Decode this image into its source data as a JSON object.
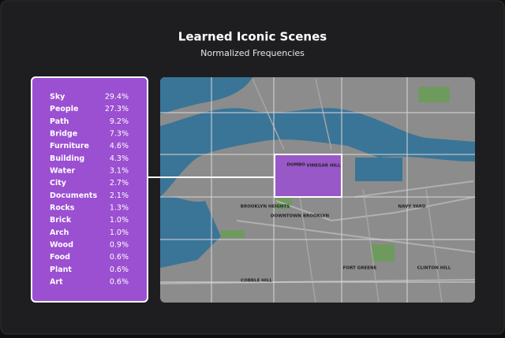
{
  "header": {
    "title": "Learned Iconic Scenes",
    "subtitle": "Normalized Frequencies"
  },
  "table": {
    "rows": [
      [
        "Sky",
        "29.4%"
      ],
      [
        "People",
        "27.3%"
      ],
      [
        "Path",
        "9.2%"
      ],
      [
        "Bridge",
        "7.3%"
      ],
      [
        "Furniture",
        "4.6%"
      ],
      [
        "Building",
        "4.3%"
      ],
      [
        "Water",
        "3.1%"
      ],
      [
        "City",
        "2.7%"
      ],
      [
        "Documents",
        "2.1%"
      ],
      [
        "Rocks",
        "1.3%"
      ],
      [
        "Brick",
        "1.0%"
      ],
      [
        "Arch",
        "1.0%"
      ],
      [
        "Wood",
        "0.9%"
      ],
      [
        "Food",
        "0.6%"
      ],
      [
        "Plant",
        "0.6%"
      ],
      [
        "Art",
        "0.6%"
      ]
    ]
  },
  "map": {
    "labels": [
      "DUMBO",
      "VINEGAR HILL",
      "BROOKLYN HEIGHTS",
      "DOWNTOWN BROOKLYN",
      "NAVY YARD",
      "FORT GREENE",
      "CLINTON HILL",
      "COBBLE HILL"
    ]
  }
}
